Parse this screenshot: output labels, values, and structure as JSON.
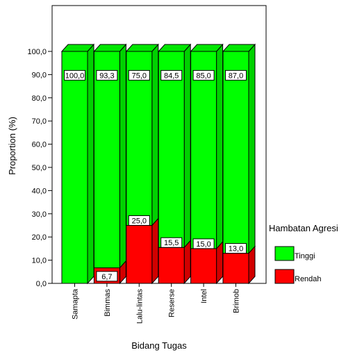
{
  "chart_data": {
    "type": "bar",
    "stacked": true,
    "three_d": true,
    "categories": [
      "Samapta",
      "Bimmas",
      "Lalu-lintas",
      "Reserse",
      "Intel",
      "Brimob"
    ],
    "series": [
      {
        "name": "Rendah",
        "color": "#ff0000",
        "values": [
          0.0,
          6.7,
          25.0,
          15.5,
          15.0,
          13.0
        ],
        "labels": [
          "",
          "6,7",
          "25,0",
          "15,5",
          "15,0",
          "13,0"
        ]
      },
      {
        "name": "Tinggi",
        "color": "#00ff00",
        "values": [
          100.0,
          93.3,
          75.0,
          84.5,
          85.0,
          87.0
        ],
        "labels": [
          "100,0",
          "93,3",
          "75,0",
          "84,5",
          "85,0",
          "87,0"
        ]
      }
    ],
    "xlabel": "Bidang Tugas",
    "ylabel": "Proportion (%)",
    "ylim": [
      0,
      100
    ],
    "yticks": [
      0,
      10,
      20,
      30,
      40,
      50,
      60,
      70,
      80,
      90,
      100
    ],
    "ytick_labels": [
      "0,0",
      "10,0",
      "20,0",
      "30,0",
      "40,0",
      "50,0",
      "60,0",
      "70,0",
      "80,0",
      "90,0",
      "100,0"
    ],
    "legend": {
      "title": "Hambatan Agresi",
      "placement": "right",
      "entries": [
        {
          "name": "Tinggi",
          "color": "#00ff00"
        },
        {
          "name": "Rendah",
          "color": "#ff0000"
        }
      ]
    },
    "grid": false
  }
}
